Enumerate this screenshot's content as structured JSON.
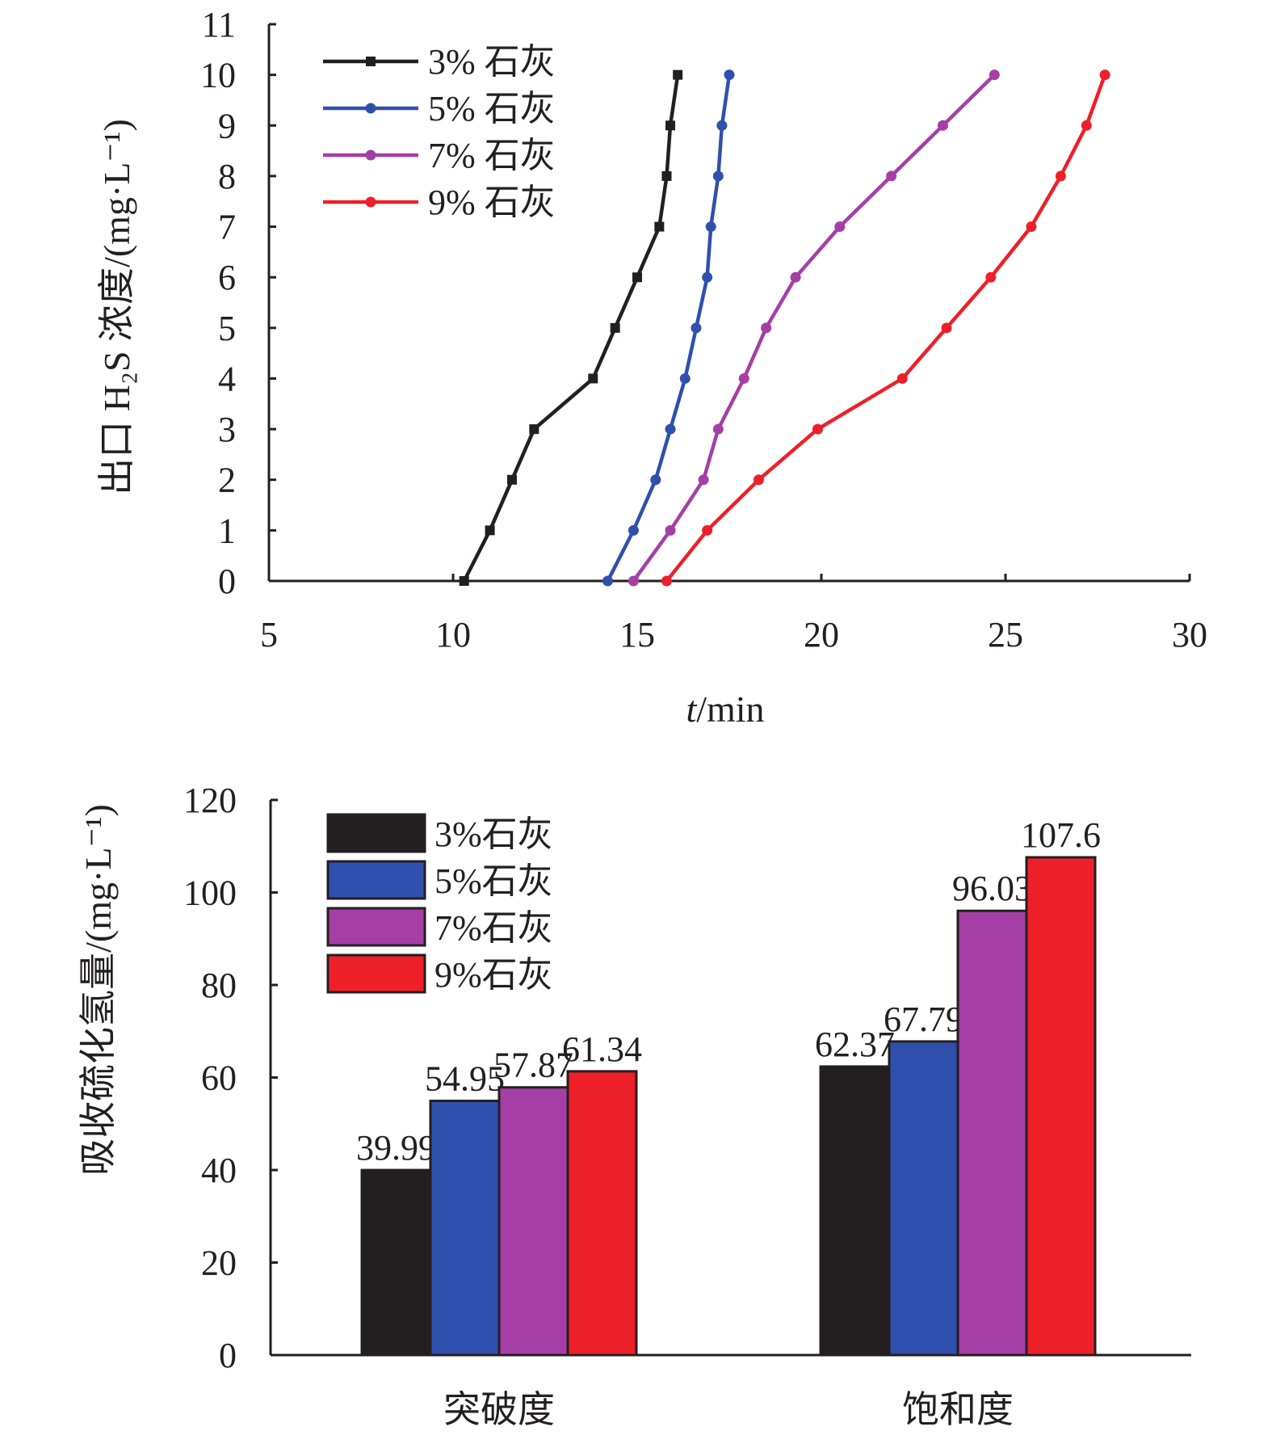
{
  "colors": {
    "axis": "#231f20",
    "series": [
      "#231f20",
      "#3050ae",
      "#a53fa6",
      "#ed2029"
    ]
  },
  "chart_data": [
    {
      "type": "line",
      "xlabel_italic": "t",
      "xlabel_rest": "/min",
      "ylabel": "出口 H₂S 浓度/(mg·L⁻¹)",
      "xlim": [
        5,
        30
      ],
      "ylim": [
        0,
        11
      ],
      "xticks": [
        5,
        10,
        15,
        20,
        25,
        30
      ],
      "yticks": [
        0,
        1,
        2,
        3,
        4,
        5,
        6,
        7,
        8,
        9,
        10,
        11
      ],
      "legend_position": "top-left",
      "grid": false,
      "series": [
        {
          "name": "3% 石灰",
          "marker": "square",
          "color": "#231f20",
          "x": [
            10.3,
            11.0,
            11.6,
            12.2,
            13.8,
            14.4,
            15.0,
            15.6,
            15.8,
            15.9,
            16.1
          ],
          "y": [
            0,
            1,
            2,
            3,
            4,
            5,
            6,
            7,
            8,
            9,
            10
          ]
        },
        {
          "name": "5% 石灰",
          "marker": "circle",
          "color": "#3050ae",
          "x": [
            14.2,
            14.9,
            15.5,
            15.9,
            16.3,
            16.6,
            16.9,
            17.0,
            17.2,
            17.3,
            17.5
          ],
          "y": [
            0,
            1,
            2,
            3,
            4,
            5,
            6,
            7,
            8,
            9,
            10
          ]
        },
        {
          "name": "7% 石灰",
          "marker": "circle",
          "color": "#a53fa6",
          "x": [
            14.9,
            15.9,
            16.8,
            17.2,
            17.9,
            18.5,
            19.3,
            20.5,
            21.9,
            23.3,
            24.7
          ],
          "y": [
            0,
            1,
            2,
            3,
            4,
            5,
            6,
            7,
            8,
            9,
            10
          ]
        },
        {
          "name": "9% 石灰",
          "marker": "circle",
          "color": "#ed2029",
          "x": [
            15.8,
            16.9,
            18.3,
            19.9,
            22.2,
            23.4,
            24.6,
            25.7,
            26.5,
            27.2,
            27.7
          ],
          "y": [
            0,
            1,
            2,
            3,
            4,
            5,
            6,
            7,
            8,
            9,
            10
          ]
        }
      ]
    },
    {
      "type": "bar",
      "ylabel": "吸收硫化氢量/(mg·L⁻¹)",
      "ylim": [
        0,
        120
      ],
      "yticks": [
        0,
        20,
        40,
        60,
        80,
        100,
        120
      ],
      "categories": [
        "突破度",
        "饱和度"
      ],
      "legend_position": "top-left",
      "grid": false,
      "series": [
        {
          "name": "3%石灰",
          "color": "#231f20",
          "values": [
            39.99,
            62.37
          ],
          "labels": [
            "39.99",
            "62.37"
          ]
        },
        {
          "name": "5%石灰",
          "color": "#3050ae",
          "values": [
            54.95,
            67.79
          ],
          "labels": [
            "54.95",
            "67.79"
          ]
        },
        {
          "name": "7%石灰",
          "color": "#a53fa6",
          "values": [
            57.87,
            96.03
          ],
          "labels": [
            "57.87",
            "96.03"
          ]
        },
        {
          "name": "9%石灰",
          "color": "#ed2029",
          "values": [
            61.34,
            107.6
          ],
          "labels": [
            "61.34",
            "107.6"
          ]
        }
      ]
    }
  ]
}
